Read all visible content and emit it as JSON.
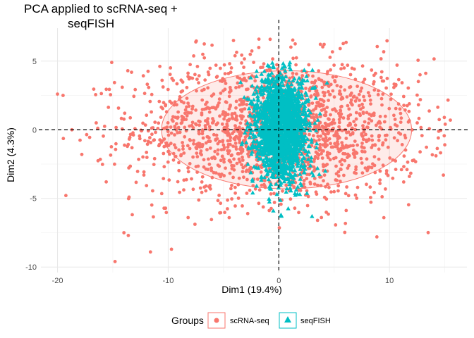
{
  "chart_data": {
    "type": "scatter",
    "title_lines": [
      "PCA applied to scRNA-seq +",
      "seqFISH"
    ],
    "xlabel": "Dim1 (19.4%)",
    "ylabel": "Dim2 (4.3%)",
    "xlim": [
      -21.5,
      17
    ],
    "ylim": [
      -10.4,
      7.4
    ],
    "xticks": [
      -20,
      -10,
      0,
      10
    ],
    "yticks": [
      -10,
      -5,
      0,
      5
    ],
    "xtick_labels": [
      "-20",
      "-10",
      "0",
      "10"
    ],
    "ytick_labels": [
      "-10",
      "-5",
      "0",
      "5"
    ],
    "grid": true,
    "reference_lines": {
      "x": 0,
      "y": 0,
      "style": "dashed"
    },
    "legend": {
      "title": "Groups",
      "position": "bottom"
    },
    "series": [
      {
        "name": "scRNA-seq",
        "color": "#F8766D",
        "marker": "circle",
        "n_points": 1800,
        "center": [
          0,
          0
        ],
        "spread": [
          6.5,
          2.6
        ],
        "x_range": [
          -20,
          15.5
        ],
        "y_range": [
          -9.8,
          6.6
        ],
        "ellipse": {
          "center": [
            0.7,
            0
          ],
          "rx": 11.3,
          "ry": 4.3
        },
        "sample_points": [
          [
            -20,
            2.6
          ],
          [
            -19.5,
            2.5
          ],
          [
            -18.7,
            0
          ],
          [
            -17.8,
            -1.8
          ],
          [
            -16.5,
            0.5
          ],
          [
            -15.6,
            -3.8
          ],
          [
            -15.1,
            4.9
          ],
          [
            -14.8,
            -9.6
          ],
          [
            -14,
            -7.5
          ],
          [
            -13.6,
            -7.7
          ],
          [
            -11.6,
            -8.9
          ],
          [
            -9.7,
            -8.7
          ],
          [
            -8.2,
            -6.4
          ],
          [
            -7.5,
            6.4
          ],
          [
            -4.1,
            6.5
          ],
          [
            -1.8,
            6.6
          ],
          [
            3.5,
            -6.6
          ],
          [
            5.9,
            4.5
          ],
          [
            11.8,
            -3.4
          ],
          [
            14.2,
            -1.9
          ],
          [
            15.5,
            0.7
          ],
          [
            15,
            -1.1
          ]
        ]
      },
      {
        "name": "seqFISH",
        "color": "#00BFC4",
        "marker": "triangle",
        "n_points": 1800,
        "center": [
          0.2,
          0.2
        ],
        "spread": [
          1.2,
          1.9
        ],
        "x_range": [
          -3.5,
          4.6
        ],
        "y_range": [
          -6.3,
          4.9
        ],
        "sample_points": [
          [
            -1,
            4.7
          ],
          [
            1,
            4.9
          ],
          [
            2.5,
            3.9
          ],
          [
            -2.8,
            -2.5
          ],
          [
            3.5,
            -2.8
          ],
          [
            -0.5,
            -5.9
          ],
          [
            0.2,
            -6.2
          ],
          [
            3,
            -6.3
          ],
          [
            4.2,
            -3
          ],
          [
            1.9,
            -4.7
          ]
        ]
      }
    ]
  }
}
